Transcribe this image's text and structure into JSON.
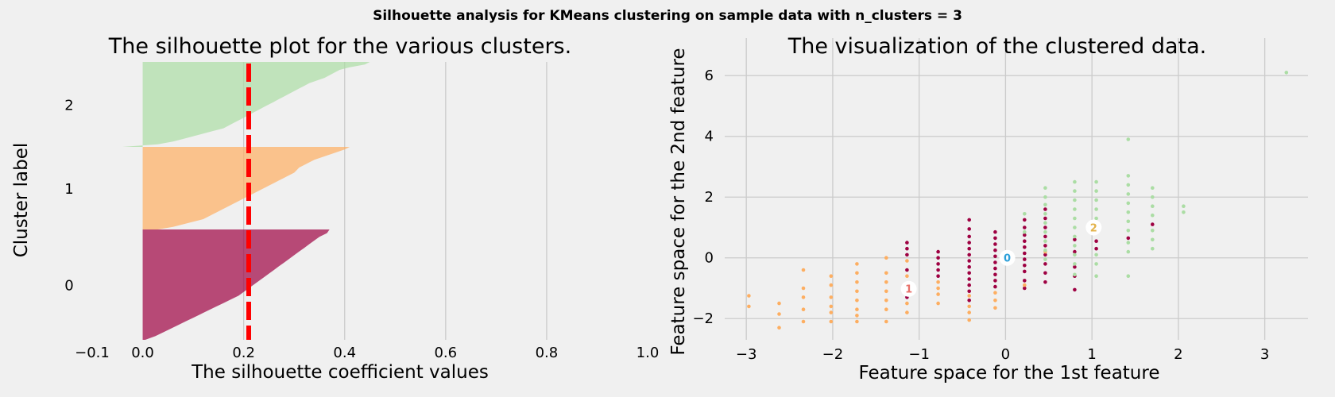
{
  "figure": {
    "suptitle": "Silhouette analysis for KMeans clustering on sample data with n_clusters = 3"
  },
  "chart_data": [
    {
      "type": "area",
      "title": "The silhouette plot for the various clusters.",
      "xlabel": "The silhouette coefficient values",
      "ylabel": "Cluster label",
      "xlim": [
        -0.1,
        1.0
      ],
      "xticks": [
        "−0.1",
        "0.0",
        "0.2",
        "0.4",
        "0.6",
        "0.8",
        "1.0"
      ],
      "grid": "vertical",
      "average_silhouette": 0.21,
      "clusters": [
        {
          "label": "0",
          "color": "#9e0142",
          "silhouette_profile": [
            0.37,
            0.365,
            0.35,
            0.34,
            0.33,
            0.32,
            0.31,
            0.3,
            0.29,
            0.28,
            0.27,
            0.26,
            0.25,
            0.24,
            0.23,
            0.22,
            0.21,
            0.2,
            0.19,
            0.175,
            0.16,
            0.145,
            0.13,
            0.115,
            0.1,
            0.085,
            0.07,
            0.055,
            0.04,
            0.025,
            0.005
          ]
        },
        {
          "label": "1",
          "color": "#fdae61",
          "silhouette_profile": [
            0.41,
            0.4,
            0.385,
            0.37,
            0.355,
            0.34,
            0.33,
            0.32,
            0.31,
            0.305,
            0.3,
            0.29,
            0.28,
            0.27,
            0.26,
            0.25,
            0.24,
            0.23,
            0.22,
            0.21,
            0.2,
            0.19,
            0.18,
            0.17,
            0.16,
            0.15,
            0.14,
            0.13,
            0.12,
            0.1,
            0.08,
            0.06,
            0.03
          ]
        },
        {
          "label": "2",
          "color": "#abdda4",
          "silhouette_profile": [
            0.45,
            0.44,
            0.41,
            0.39,
            0.38,
            0.37,
            0.36,
            0.345,
            0.33,
            0.32,
            0.31,
            0.3,
            0.29,
            0.28,
            0.27,
            0.26,
            0.25,
            0.24,
            0.23,
            0.22,
            0.21,
            0.2,
            0.19,
            0.18,
            0.17,
            0.16,
            0.14,
            0.12,
            0.1,
            0.08,
            0.06,
            0.03,
            -0.04
          ]
        }
      ]
    },
    {
      "type": "scatter",
      "title": "The visualization of the clustered data.",
      "xlabel": "Feature space for the 1st feature",
      "ylabel": "Feature space for the 2nd feature",
      "xlim": [
        -3.25,
        3.5
      ],
      "ylim": [
        -2.7,
        6.45
      ],
      "xticks": [
        "−3",
        "−2",
        "−1",
        "0",
        "1",
        "2",
        "3"
      ],
      "yticks": [
        "−2",
        "0",
        "2",
        "4",
        "6"
      ],
      "grid": true,
      "centers": [
        {
          "label": "0",
          "x": 0.02,
          "y": 0.0,
          "color": "#2b9fd9"
        },
        {
          "label": "1",
          "x": -1.12,
          "y": -1.02,
          "color": "#e8716a"
        },
        {
          "label": "2",
          "x": 1.02,
          "y": 1.0,
          "color": "#e3b34b"
        }
      ],
      "series": [
        {
          "cluster": "0",
          "color": "#9e0142",
          "points": [
            [
              -1.14,
              0.5
            ],
            [
              -1.14,
              0.3
            ],
            [
              -1.14,
              0.1
            ],
            [
              -1.14,
              -0.4
            ],
            [
              -1.14,
              -0.9
            ],
            [
              -1.14,
              -1.3
            ],
            [
              -0.78,
              0.2
            ],
            [
              -0.78,
              0.0
            ],
            [
              -0.78,
              -0.2
            ],
            [
              -0.78,
              -0.4
            ],
            [
              -0.78,
              -0.6
            ],
            [
              -0.42,
              1.25
            ],
            [
              -0.42,
              0.95
            ],
            [
              -0.42,
              0.7
            ],
            [
              -0.42,
              0.5
            ],
            [
              -0.42,
              0.3
            ],
            [
              -0.42,
              0.1
            ],
            [
              -0.42,
              -0.1
            ],
            [
              -0.42,
              -0.3
            ],
            [
              -0.42,
              -0.5
            ],
            [
              -0.42,
              -0.7
            ],
            [
              -0.42,
              -0.9
            ],
            [
              -0.42,
              -1.1
            ],
            [
              -0.42,
              -1.4
            ],
            [
              -0.12,
              0.85
            ],
            [
              -0.12,
              0.65
            ],
            [
              -0.12,
              0.45
            ],
            [
              -0.12,
              0.25
            ],
            [
              -0.12,
              0.05
            ],
            [
              -0.12,
              -0.15
            ],
            [
              -0.12,
              -0.35
            ],
            [
              -0.12,
              -0.55
            ],
            [
              -0.12,
              -0.75
            ],
            [
              -0.12,
              -0.95
            ],
            [
              0.22,
              1.25
            ],
            [
              0.22,
              1.0
            ],
            [
              0.22,
              0.75
            ],
            [
              0.22,
              0.55
            ],
            [
              0.22,
              0.35
            ],
            [
              0.22,
              0.15
            ],
            [
              0.22,
              -0.05
            ],
            [
              0.22,
              -0.25
            ],
            [
              0.22,
              -0.45
            ],
            [
              0.22,
              -0.75
            ],
            [
              0.22,
              -1.0
            ],
            [
              0.46,
              1.6
            ],
            [
              0.46,
              1.3
            ],
            [
              0.46,
              1.0
            ],
            [
              0.46,
              0.7
            ],
            [
              0.46,
              0.4
            ],
            [
              0.46,
              0.1
            ],
            [
              0.46,
              -0.2
            ],
            [
              0.46,
              -0.5
            ],
            [
              0.46,
              -0.8
            ],
            [
              0.8,
              0.6
            ],
            [
              0.8,
              0.2
            ],
            [
              0.8,
              -0.3
            ],
            [
              0.8,
              -0.6
            ],
            [
              0.8,
              -1.05
            ],
            [
              1.05,
              0.55
            ],
            [
              1.05,
              0.3
            ],
            [
              1.42,
              0.65
            ],
            [
              1.7,
              1.1
            ]
          ]
        },
        {
          "cluster": "1",
          "color": "#fdae61",
          "points": [
            [
              -2.97,
              -1.25
            ],
            [
              -2.97,
              -1.6
            ],
            [
              -2.62,
              -1.5
            ],
            [
              -2.62,
              -1.85
            ],
            [
              -2.62,
              -2.3
            ],
            [
              -2.34,
              -0.4
            ],
            [
              -2.34,
              -1.0
            ],
            [
              -2.34,
              -1.3
            ],
            [
              -2.34,
              -1.7
            ],
            [
              -2.34,
              -2.1
            ],
            [
              -2.02,
              -0.6
            ],
            [
              -2.02,
              -0.9
            ],
            [
              -2.02,
              -1.3
            ],
            [
              -2.02,
              -1.6
            ],
            [
              -2.02,
              -1.8
            ],
            [
              -2.02,
              -2.1
            ],
            [
              -1.72,
              -0.2
            ],
            [
              -1.72,
              -0.5
            ],
            [
              -1.72,
              -0.8
            ],
            [
              -1.72,
              -1.1
            ],
            [
              -1.72,
              -1.4
            ],
            [
              -1.72,
              -1.7
            ],
            [
              -1.72,
              -1.9
            ],
            [
              -1.72,
              -2.1
            ],
            [
              -1.38,
              -0.5
            ],
            [
              -1.38,
              -0.8
            ],
            [
              -1.38,
              -1.1
            ],
            [
              -1.38,
              -1.4
            ],
            [
              -1.38,
              -1.7
            ],
            [
              -1.38,
              -2.1
            ],
            [
              -1.38,
              0.0
            ],
            [
              -1.14,
              -0.1
            ],
            [
              -1.14,
              -0.6
            ],
            [
              -1.14,
              -1.5
            ],
            [
              -1.14,
              -1.8
            ],
            [
              -0.78,
              -0.8
            ],
            [
              -0.78,
              -1.0
            ],
            [
              -0.78,
              -1.2
            ],
            [
              -0.78,
              -1.5
            ],
            [
              -0.42,
              -1.6
            ],
            [
              -0.42,
              -1.8
            ],
            [
              -0.42,
              -2.05
            ],
            [
              -0.42,
              -1.25
            ],
            [
              -0.12,
              -1.15
            ],
            [
              -0.12,
              -1.4
            ],
            [
              -0.12,
              -1.65
            ],
            [
              0.22,
              -0.9
            ],
            [
              0.46,
              0.2
            ]
          ]
        },
        {
          "cluster": "2",
          "color": "#abdda4",
          "points": [
            [
              0.22,
              1.45
            ],
            [
              0.22,
              0.85
            ],
            [
              0.46,
              2.3
            ],
            [
              0.46,
              2.0
            ],
            [
              0.46,
              1.75
            ],
            [
              0.46,
              1.45
            ],
            [
              0.46,
              1.15
            ],
            [
              0.46,
              0.85
            ],
            [
              0.46,
              0.55
            ],
            [
              0.46,
              0.25
            ],
            [
              0.46,
              -0.05
            ],
            [
              0.8,
              2.5
            ],
            [
              0.8,
              2.2
            ],
            [
              0.8,
              1.9
            ],
            [
              0.8,
              1.6
            ],
            [
              0.8,
              1.3
            ],
            [
              0.8,
              1.0
            ],
            [
              0.8,
              0.7
            ],
            [
              0.8,
              0.4
            ],
            [
              0.8,
              0.1
            ],
            [
              0.8,
              -0.2
            ],
            [
              0.8,
              -0.55
            ],
            [
              1.05,
              2.5
            ],
            [
              1.05,
              2.2
            ],
            [
              1.05,
              1.9
            ],
            [
              1.05,
              1.6
            ],
            [
              1.05,
              1.3
            ],
            [
              1.05,
              0.9
            ],
            [
              1.05,
              0.1
            ],
            [
              1.05,
              -0.2
            ],
            [
              1.05,
              -0.6
            ],
            [
              1.42,
              3.9
            ],
            [
              1.42,
              2.7
            ],
            [
              1.42,
              2.4
            ],
            [
              1.42,
              2.1
            ],
            [
              1.42,
              1.8
            ],
            [
              1.42,
              1.5
            ],
            [
              1.42,
              1.2
            ],
            [
              1.42,
              0.9
            ],
            [
              1.42,
              0.5
            ],
            [
              1.42,
              0.2
            ],
            [
              1.42,
              -0.6
            ],
            [
              1.7,
              2.3
            ],
            [
              1.7,
              2.0
            ],
            [
              1.7,
              1.7
            ],
            [
              1.7,
              1.4
            ],
            [
              1.7,
              0.9
            ],
            [
              1.7,
              0.6
            ],
            [
              1.7,
              0.3
            ],
            [
              2.06,
              1.7
            ],
            [
              2.06,
              1.5
            ],
            [
              3.25,
              6.1
            ]
          ]
        }
      ]
    }
  ]
}
